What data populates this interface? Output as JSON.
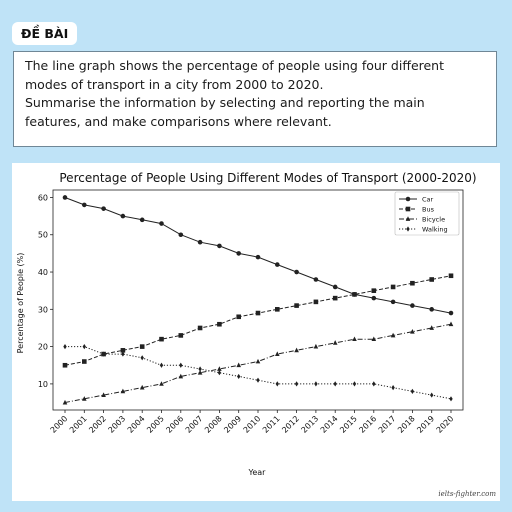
{
  "header": {
    "badge_label": "ĐỀ BÀI"
  },
  "prompt": {
    "line1": "The line graph shows the percentage of people using four different",
    "line2": "modes of transport in a city from 2000 to 2020.",
    "line3": "Summarise the information by selecting and reporting the main",
    "line4": "features, and make comparisons where relevant."
  },
  "credit": "ielts-fighter.com",
  "colors": {
    "background": "#bfe3f7",
    "line": "#222222",
    "frame": "#6f8796"
  },
  "chart_data": {
    "type": "line",
    "title": "Percentage of People Using Different Modes of Transport (2000-2020)",
    "xlabel": "Year",
    "ylabel": "Percentage of People (%)",
    "x": [
      "2000",
      "2001",
      "2002",
      "2003",
      "2004",
      "2005",
      "2006",
      "2007",
      "2008",
      "2009",
      "2010",
      "2011",
      "2012",
      "2013",
      "2014",
      "2015",
      "2016",
      "2017",
      "2018",
      "2019",
      "2020"
    ],
    "yticks": [
      10,
      20,
      30,
      40,
      50,
      60
    ],
    "ylim": [
      3,
      62
    ],
    "grid": false,
    "legend_position": "top-right",
    "series": [
      {
        "name": "Car",
        "marker": "circle",
        "dash": "solid",
        "values": [
          60,
          58,
          57,
          55,
          54,
          53,
          50,
          48,
          47,
          45,
          44,
          42,
          40,
          38,
          36,
          34,
          33,
          32,
          31,
          30,
          29
        ]
      },
      {
        "name": "Bus",
        "marker": "square",
        "dash": "dashed",
        "values": [
          15,
          16,
          18,
          19,
          20,
          22,
          23,
          25,
          26,
          28,
          29,
          30,
          31,
          32,
          33,
          34,
          35,
          36,
          37,
          38,
          39
        ]
      },
      {
        "name": "Bicycle",
        "marker": "triangle",
        "dash": "dashdot",
        "values": [
          5,
          6,
          7,
          8,
          9,
          10,
          12,
          13,
          14,
          15,
          16,
          18,
          19,
          20,
          21,
          22,
          22,
          23,
          24,
          25,
          26
        ]
      },
      {
        "name": "Walking",
        "marker": "diamond",
        "dash": "dotted",
        "values": [
          20,
          20,
          18,
          18,
          17,
          15,
          15,
          14,
          13,
          12,
          11,
          10,
          10,
          10,
          10,
          10,
          10,
          9,
          8,
          7,
          6
        ]
      }
    ]
  }
}
